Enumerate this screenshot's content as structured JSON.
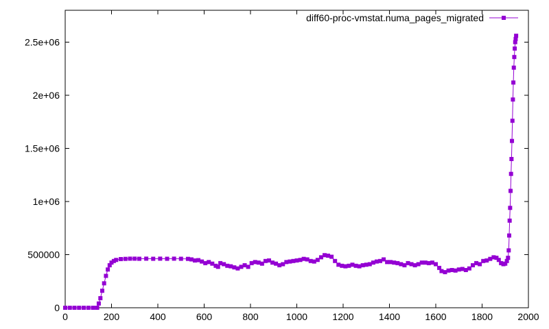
{
  "chart_data": {
    "type": "line",
    "title": "",
    "xlabel": "",
    "ylabel": "",
    "xlim": [
      0,
      2000
    ],
    "ylim": [
      0,
      2800000
    ],
    "x_ticks": [
      0,
      200,
      400,
      600,
      800,
      1000,
      1200,
      1400,
      1600,
      1800,
      2000
    ],
    "x_tick_labels": [
      "0",
      "200",
      "400",
      "600",
      "800",
      "1000",
      "1200",
      "1400",
      "1600",
      "1800",
      "2000"
    ],
    "y_ticks": [
      0,
      500000,
      1000000,
      1500000,
      2000000,
      2500000
    ],
    "y_tick_labels": [
      "0",
      "500000",
      "1e+06",
      "1.5e+06",
      "2e+06",
      "2.5e+06"
    ],
    "grid": false,
    "legend_position": "top-right",
    "series": [
      {
        "name": "diff60-proc-vmstat.numa_pages_migrated",
        "color": "#9400d3",
        "marker": "square",
        "points": [
          [
            0,
            0
          ],
          [
            20,
            0
          ],
          [
            40,
            0
          ],
          [
            60,
            0
          ],
          [
            80,
            0
          ],
          [
            100,
            0
          ],
          [
            120,
            0
          ],
          [
            138,
            0
          ],
          [
            145,
            40000
          ],
          [
            152,
            90000
          ],
          [
            160,
            160000
          ],
          [
            168,
            230000
          ],
          [
            176,
            300000
          ],
          [
            184,
            360000
          ],
          [
            192,
            400000
          ],
          [
            200,
            425000
          ],
          [
            210,
            440000
          ],
          [
            220,
            450000
          ],
          [
            240,
            458000
          ],
          [
            260,
            460000
          ],
          [
            280,
            462000
          ],
          [
            300,
            462000
          ],
          [
            320,
            461000
          ],
          [
            350,
            462000
          ],
          [
            380,
            461000
          ],
          [
            410,
            462000
          ],
          [
            440,
            461000
          ],
          [
            470,
            462000
          ],
          [
            500,
            461000
          ],
          [
            530,
            460000
          ],
          [
            545,
            455000
          ],
          [
            560,
            445000
          ],
          [
            575,
            448000
          ],
          [
            590,
            435000
          ],
          [
            605,
            420000
          ],
          [
            620,
            430000
          ],
          [
            635,
            415000
          ],
          [
            650,
            395000
          ],
          [
            660,
            385000
          ],
          [
            670,
            420000
          ],
          [
            685,
            410000
          ],
          [
            700,
            395000
          ],
          [
            715,
            390000
          ],
          [
            730,
            380000
          ],
          [
            745,
            370000
          ],
          [
            760,
            385000
          ],
          [
            775,
            400000
          ],
          [
            790,
            385000
          ],
          [
            805,
            420000
          ],
          [
            820,
            430000
          ],
          [
            835,
            425000
          ],
          [
            850,
            415000
          ],
          [
            865,
            440000
          ],
          [
            880,
            445000
          ],
          [
            895,
            425000
          ],
          [
            910,
            415000
          ],
          [
            925,
            400000
          ],
          [
            940,
            410000
          ],
          [
            955,
            430000
          ],
          [
            970,
            435000
          ],
          [
            985,
            440000
          ],
          [
            1000,
            445000
          ],
          [
            1015,
            450000
          ],
          [
            1030,
            460000
          ],
          [
            1045,
            455000
          ],
          [
            1060,
            440000
          ],
          [
            1075,
            435000
          ],
          [
            1090,
            450000
          ],
          [
            1105,
            475000
          ],
          [
            1120,
            495000
          ],
          [
            1135,
            490000
          ],
          [
            1150,
            480000
          ],
          [
            1165,
            440000
          ],
          [
            1180,
            405000
          ],
          [
            1195,
            395000
          ],
          [
            1210,
            390000
          ],
          [
            1225,
            395000
          ],
          [
            1240,
            405000
          ],
          [
            1255,
            395000
          ],
          [
            1270,
            390000
          ],
          [
            1285,
            400000
          ],
          [
            1300,
            405000
          ],
          [
            1315,
            410000
          ],
          [
            1330,
            425000
          ],
          [
            1345,
            435000
          ],
          [
            1360,
            440000
          ],
          [
            1375,
            455000
          ],
          [
            1390,
            430000
          ],
          [
            1405,
            430000
          ],
          [
            1420,
            425000
          ],
          [
            1435,
            420000
          ],
          [
            1450,
            410000
          ],
          [
            1465,
            400000
          ],
          [
            1480,
            420000
          ],
          [
            1495,
            410000
          ],
          [
            1510,
            400000
          ],
          [
            1525,
            410000
          ],
          [
            1540,
            425000
          ],
          [
            1555,
            425000
          ],
          [
            1570,
            420000
          ],
          [
            1585,
            425000
          ],
          [
            1600,
            410000
          ],
          [
            1615,
            375000
          ],
          [
            1625,
            345000
          ],
          [
            1640,
            335000
          ],
          [
            1655,
            350000
          ],
          [
            1670,
            355000
          ],
          [
            1685,
            350000
          ],
          [
            1700,
            360000
          ],
          [
            1715,
            365000
          ],
          [
            1730,
            355000
          ],
          [
            1745,
            370000
          ],
          [
            1760,
            400000
          ],
          [
            1775,
            420000
          ],
          [
            1790,
            410000
          ],
          [
            1805,
            440000
          ],
          [
            1820,
            445000
          ],
          [
            1835,
            460000
          ],
          [
            1850,
            475000
          ],
          [
            1862,
            470000
          ],
          [
            1872,
            450000
          ],
          [
            1882,
            420000
          ],
          [
            1892,
            410000
          ],
          [
            1900,
            415000
          ],
          [
            1907,
            440000
          ],
          [
            1912,
            470000
          ],
          [
            1915,
            540000
          ],
          [
            1917,
            680000
          ],
          [
            1919,
            820000
          ],
          [
            1921,
            940000
          ],
          [
            1923,
            1100000
          ],
          [
            1925,
            1260000
          ],
          [
            1927,
            1400000
          ],
          [
            1929,
            1570000
          ],
          [
            1931,
            1760000
          ],
          [
            1933,
            1960000
          ],
          [
            1935,
            2120000
          ],
          [
            1937,
            2260000
          ],
          [
            1939,
            2360000
          ],
          [
            1941,
            2440000
          ],
          [
            1943,
            2500000
          ],
          [
            1945,
            2530000
          ],
          [
            1947,
            2560000
          ]
        ]
      }
    ]
  }
}
